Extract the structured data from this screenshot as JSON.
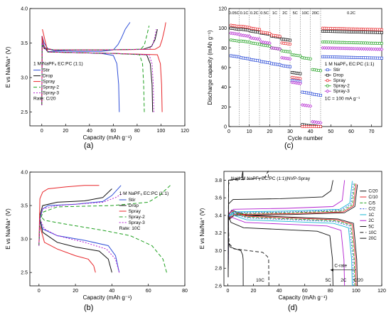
{
  "figure": {
    "panel_tags": {
      "a": "(a)",
      "b": "(b)",
      "c": "(c)",
      "d": "(d)"
    }
  },
  "chart_data": [
    {
      "id": "a",
      "type": "line",
      "xlabel": "Capacity (mAh g⁻¹)",
      "ylabel": "E vs Na/Na⁺ (V)",
      "xlim": [
        -10,
        120
      ],
      "ylim": [
        2.3,
        4.0
      ],
      "xticks": [
        0,
        20,
        40,
        60,
        80,
        100,
        120
      ],
      "yticks": [
        2.5,
        3.0,
        3.5,
        4.0
      ],
      "legend_title": "1 M NaPF₆ EC:PC (1:1)",
      "legend_note": "Rate: C/20",
      "series": [
        {
          "name": "Stir",
          "color": "#2f4fd8",
          "dash": "",
          "charge": [
            [
              0,
              2.6
            ],
            [
              0.3,
              3.6
            ],
            [
              2,
              3.5
            ],
            [
              5,
              3.42
            ],
            [
              10,
              3.39
            ],
            [
              30,
              3.38
            ],
            [
              50,
              3.38
            ],
            [
              60,
              3.4
            ],
            [
              64,
              3.48
            ],
            [
              67,
              3.58
            ],
            [
              70,
              3.7
            ],
            [
              74,
              3.8
            ]
          ],
          "discharge": [
            [
              65,
              2.5
            ],
            [
              64.5,
              2.9
            ],
            [
              63,
              3.2
            ],
            [
              60,
              3.32
            ],
            [
              50,
              3.35
            ],
            [
              30,
              3.36
            ],
            [
              15,
              3.37
            ],
            [
              5,
              3.38
            ],
            [
              1,
              3.45
            ],
            [
              0,
              3.6
            ]
          ]
        },
        {
          "name": "Drop",
          "color": "#111111",
          "dash": "",
          "charge": [
            [
              0,
              2.6
            ],
            [
              0.3,
              3.5
            ],
            [
              2,
              3.42
            ],
            [
              10,
              3.4
            ],
            [
              50,
              3.4
            ],
            [
              85,
              3.41
            ],
            [
              92,
              3.45
            ],
            [
              95,
              3.55
            ],
            [
              97,
              3.7
            ]
          ],
          "discharge": [
            [
              93,
              2.5
            ],
            [
              92.5,
              2.9
            ],
            [
              91,
              3.2
            ],
            [
              88,
              3.33
            ],
            [
              60,
              3.35
            ],
            [
              30,
              3.36
            ],
            [
              5,
              3.37
            ],
            [
              0.5,
              3.5
            ]
          ]
        },
        {
          "name": "Spray",
          "color": "#e8262a",
          "dash": "",
          "charge": [
            [
              0,
              2.6
            ],
            [
              0.3,
              3.6
            ],
            [
              2,
              3.43
            ],
            [
              10,
              3.4
            ],
            [
              50,
              3.4
            ],
            [
              95,
              3.41
            ],
            [
              99,
              3.45
            ],
            [
              101,
              3.55
            ],
            [
              103,
              3.7
            ],
            [
              104,
              3.8
            ]
          ],
          "discharge": [
            [
              101,
              2.5
            ],
            [
              100.5,
              2.9
            ],
            [
              99.5,
              3.2
            ],
            [
              97,
              3.33
            ],
            [
              60,
              3.35
            ],
            [
              30,
              3.36
            ],
            [
              5,
              3.37
            ],
            [
              0.5,
              3.7
            ]
          ]
        },
        {
          "name": "Spray-2",
          "color": "#1fa01f",
          "dash": "5,3",
          "charge": [
            [
              0,
              2.6
            ],
            [
              0.3,
              3.5
            ],
            [
              2,
              3.43
            ],
            [
              10,
              3.4
            ],
            [
              50,
              3.4
            ],
            [
              83,
              3.41
            ],
            [
              86,
              3.47
            ],
            [
              88,
              3.6
            ],
            [
              90,
              3.75
            ]
          ],
          "discharge": [
            [
              86,
              2.5
            ],
            [
              85.5,
              2.9
            ],
            [
              84.5,
              3.2
            ],
            [
              82,
              3.33
            ],
            [
              60,
              3.35
            ],
            [
              30,
              3.36
            ],
            [
              5,
              3.37
            ],
            [
              0.5,
              3.5
            ]
          ]
        },
        {
          "name": "Spray-3",
          "color": "#b21fcf",
          "dash": "2,2",
          "charge": [
            [
              0,
              2.6
            ],
            [
              0.3,
              3.5
            ],
            [
              2,
              3.43
            ],
            [
              10,
              3.4
            ],
            [
              50,
              3.4
            ],
            [
              90,
              3.41
            ],
            [
              93,
              3.47
            ],
            [
              95,
              3.6
            ],
            [
              96,
              3.7
            ]
          ],
          "discharge": [
            [
              94,
              2.5
            ],
            [
              93.5,
              2.9
            ],
            [
              92.5,
              3.2
            ],
            [
              90,
              3.33
            ],
            [
              60,
              3.35
            ],
            [
              30,
              3.36
            ],
            [
              5,
              3.37
            ],
            [
              0.5,
              3.5
            ]
          ]
        }
      ]
    },
    {
      "id": "b",
      "type": "line",
      "xlabel": "Capacity (mAh g⁻¹)",
      "ylabel": "E vs Na/Na⁺ (V)",
      "xlim": [
        -5,
        80
      ],
      "ylim": [
        2.3,
        4.0
      ],
      "xticks": [
        0,
        20,
        40,
        60,
        80
      ],
      "yticks": [
        2.5,
        3.0,
        3.5,
        4.0
      ],
      "legend_title": "1 M NaPF₆ EC:PC (1:1)",
      "legend_note": "Rate: 10C",
      "series": [
        {
          "name": "Stir",
          "color": "#2f4fd8",
          "dash": "",
          "charge": [
            [
              0,
              2.9
            ],
            [
              0.5,
              3.3
            ],
            [
              2,
              3.45
            ],
            [
              5,
              3.5
            ],
            [
              20,
              3.52
            ],
            [
              35,
              3.56
            ],
            [
              40,
              3.65
            ],
            [
              45,
              3.8
            ]
          ],
          "discharge": [
            [
              44,
              2.5
            ],
            [
              42,
              2.75
            ],
            [
              38,
              2.9
            ],
            [
              25,
              2.98
            ],
            [
              10,
              3.05
            ],
            [
              2,
              3.15
            ],
            [
              0.5,
              3.3
            ]
          ]
        },
        {
          "name": "Drop",
          "color": "#111111",
          "dash": "",
          "charge": [
            [
              0,
              2.9
            ],
            [
              0.5,
              3.35
            ],
            [
              2,
              3.5
            ],
            [
              10,
              3.55
            ],
            [
              25,
              3.57
            ],
            [
              35,
              3.62
            ],
            [
              40,
              3.75
            ]
          ],
          "discharge": [
            [
              40,
              2.5
            ],
            [
              38,
              2.7
            ],
            [
              33,
              2.82
            ],
            [
              20,
              2.88
            ],
            [
              10,
              2.95
            ],
            [
              2,
              3.1
            ],
            [
              0.5,
              3.3
            ]
          ]
        },
        {
          "name": "Spray",
          "color": "#e8262a",
          "dash": "",
          "charge": [
            [
              0,
              2.9
            ],
            [
              0.5,
              3.6
            ],
            [
              2,
              3.7
            ],
            [
              5,
              3.75
            ],
            [
              15,
              3.78
            ],
            [
              25,
              3.8
            ],
            [
              33,
              3.8
            ]
          ],
          "discharge": [
            [
              31,
              2.5
            ],
            [
              30,
              2.6
            ],
            [
              27,
              2.7
            ],
            [
              20,
              2.75
            ],
            [
              10,
              2.85
            ],
            [
              3,
              2.95
            ],
            [
              0.5,
              3.2
            ]
          ]
        },
        {
          "name": "Spray-2",
          "color": "#1fa01f",
          "dash": "5,3",
          "charge": [
            [
              0,
              2.9
            ],
            [
              0.5,
              3.25
            ],
            [
              2,
              3.4
            ],
            [
              10,
              3.48
            ],
            [
              40,
              3.5
            ],
            [
              60,
              3.55
            ],
            [
              66,
              3.65
            ],
            [
              72,
              3.8
            ]
          ],
          "discharge": [
            [
              70,
              2.5
            ],
            [
              68,
              2.7
            ],
            [
              62,
              2.9
            ],
            [
              50,
              3.05
            ],
            [
              35,
              3.13
            ],
            [
              15,
              3.22
            ],
            [
              3,
              3.28
            ],
            [
              0.5,
              3.35
            ]
          ]
        },
        {
          "name": "Spray-3",
          "color": "#b21fcf",
          "dash": "2,2",
          "charge": [
            [
              0,
              2.9
            ],
            [
              0.5,
              3.3
            ],
            [
              2,
              3.45
            ],
            [
              10,
              3.5
            ],
            [
              35,
              3.55
            ],
            [
              42,
              3.62
            ],
            [
              46,
              3.68
            ]
          ],
          "discharge": [
            [
              44,
              2.5
            ],
            [
              42,
              2.7
            ],
            [
              37,
              2.85
            ],
            [
              25,
              2.95
            ],
            [
              10,
              3.05
            ],
            [
              3,
              3.15
            ],
            [
              0.5,
              3.3
            ]
          ]
        }
      ]
    },
    {
      "id": "c",
      "type": "scatter",
      "xlabel": "Cycle number",
      "ylabel": "Discharge capacity (mAh g⁻¹)",
      "xlim": [
        0,
        75
      ],
      "ylim": [
        0,
        120
      ],
      "xticks": [
        0,
        10,
        20,
        30,
        40,
        50,
        60,
        70
      ],
      "yticks": [
        0,
        20,
        40,
        60,
        80,
        100,
        120
      ],
      "rate_labels": [
        "0.05C",
        "0.1C",
        "0.2C",
        "0.5C",
        "1C",
        "2C",
        "5C",
        "10C",
        "20C",
        "0.2C"
      ],
      "rate_label_x": [
        2.5,
        7.5,
        12.5,
        17.5,
        22.5,
        27.5,
        32.5,
        37.5,
        42.5,
        60
      ],
      "divider_x": [
        5,
        10,
        15,
        20,
        25,
        30,
        35,
        40,
        45
      ],
      "legend_title": "1 M NaPF₆ EC:PC (1:1)",
      "legend_note": "1C = 100 mA g⁻¹",
      "series": [
        {
          "name": "Stir",
          "color": "#2f4fd8",
          "marker": "square",
          "levels": [
            72,
            70,
            68,
            66,
            64,
            62,
            47,
            35,
            33,
            71
          ]
        },
        {
          "name": "Drop",
          "color": "#111111",
          "marker": "square",
          "levels": [
            100,
            99,
            97,
            95,
            92,
            89,
            55,
            2,
            1,
            97
          ]
        },
        {
          "name": "Spray",
          "color": "#e8262a",
          "marker": "circle",
          "levels": [
            103,
            102,
            100,
            96,
            93,
            85,
            50,
            0,
            0,
            100
          ]
        },
        {
          "name": "Spray-2",
          "color": "#1fa01f",
          "marker": "circle",
          "levels": [
            88,
            87,
            85,
            83,
            80,
            77,
            73,
            70,
            58,
            86
          ]
        },
        {
          "name": "Spray-3",
          "color": "#b21fcf",
          "marker": "diamond",
          "levels": [
            95,
            93,
            90,
            86,
            80,
            70,
            45,
            22,
            5,
            80
          ]
        }
      ]
    },
    {
      "id": "d",
      "type": "line",
      "title": "Na|1 M NaPF₆ EC:PC (1:1)|NVP-Spray",
      "xlabel": "Capacity (mAh g⁻¹)",
      "ylabel": "E vs Na/Na⁺ (V)",
      "xlim": [
        -3,
        120
      ],
      "ylim": [
        2.6,
        3.9
      ],
      "xticks": [
        0,
        20,
        40,
        60,
        80,
        100,
        120
      ],
      "yticks": [
        2.6,
        2.8,
        3.0,
        3.2,
        3.4,
        3.6,
        3.8
      ],
      "annotations": {
        "c_rate": "C-rate",
        "tenC": "10C",
        "fiveC": "5C",
        "twoC": "2C",
        "c20": "C/20"
      },
      "series": [
        {
          "name": "C/20",
          "color": "#111111",
          "dash": "",
          "cap": 101,
          "dis": 3.36,
          "chg": 3.4
        },
        {
          "name": "C/10",
          "color": "#e8262a",
          "dash": "",
          "cap": 100,
          "dis": 3.35,
          "chg": 3.41
        },
        {
          "name": "C/5",
          "color": "#1fa01f",
          "dash": "4,2",
          "cap": 99,
          "dis": 3.34,
          "chg": 3.42
        },
        {
          "name": "C/2",
          "color": "#2f4fd8",
          "dash": "2,2",
          "cap": 98,
          "dis": 3.33,
          "chg": 3.43
        },
        {
          "name": "1C",
          "color": "#1ab8d4",
          "dash": "",
          "cap": 97,
          "dis": 3.31,
          "chg": 3.44
        },
        {
          "name": "2C",
          "color": "#b21fcf",
          "dash": "",
          "cap": 91,
          "dis": 3.28,
          "chg": 3.47
        },
        {
          "name": "5C",
          "color": "#111111",
          "dash": "",
          "cap": 82,
          "dis": 3.22,
          "chg": 3.58
        },
        {
          "name": "10C",
          "color": "#111111",
          "dash": "5,3",
          "cap": 32,
          "dis": 2.98,
          "chg": 3.8
        },
        {
          "name": "20C",
          "color": "#111111",
          "dash": "",
          "cap": 12,
          "dis": 3.0,
          "chg": 3.8
        }
      ]
    }
  ]
}
